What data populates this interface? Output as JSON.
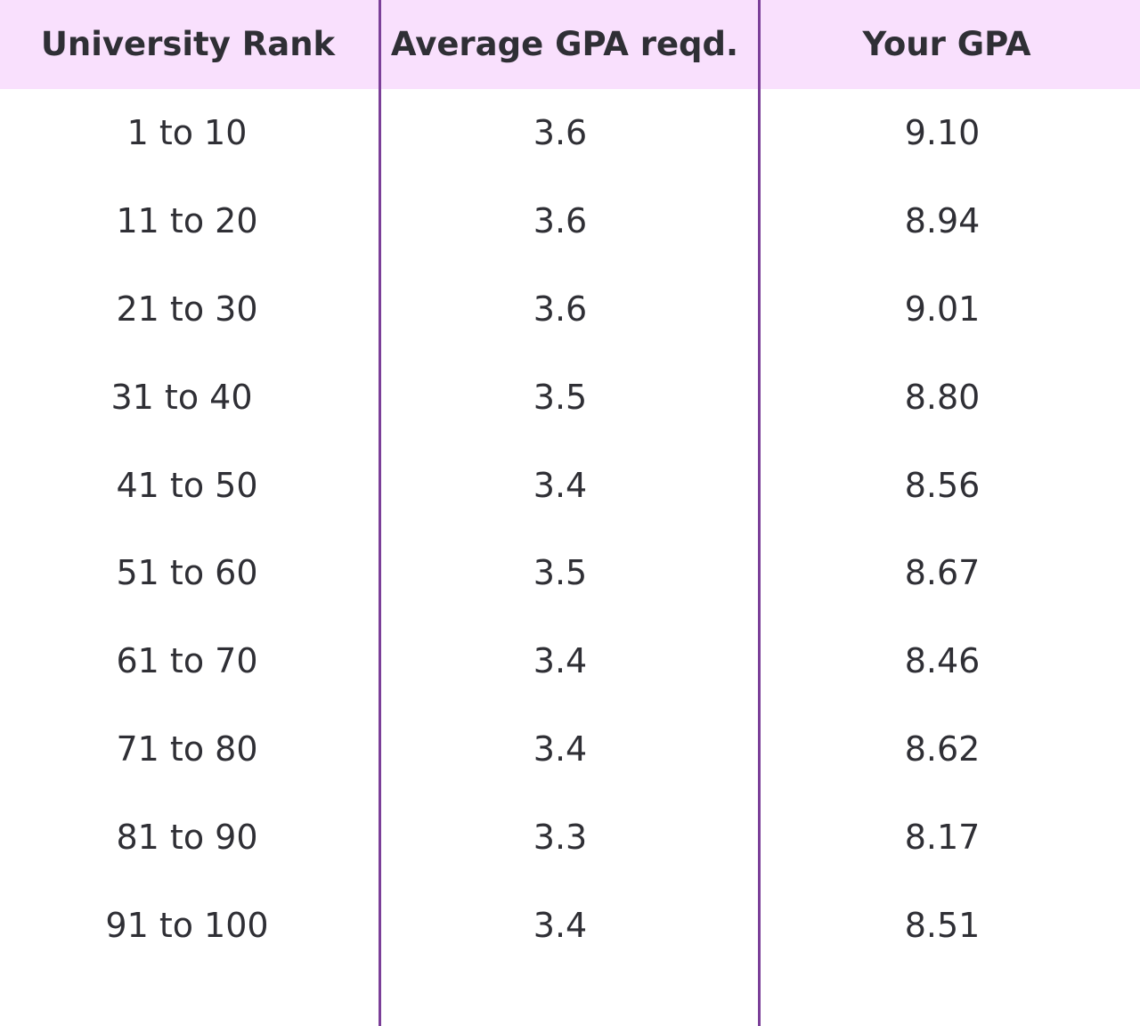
{
  "table": {
    "headers": [
      "University Rank",
      "Average GPA reqd.",
      "Your GPA"
    ],
    "rows": [
      [
        "1 to 10",
        "3.6",
        "9.10"
      ],
      [
        "11 to 20",
        "3.6",
        "8.94"
      ],
      [
        "21 to 30",
        "3.6",
        "9.01"
      ],
      [
        "31 to 40",
        "3.5",
        "8.80"
      ],
      [
        "41 to 50",
        "3.4",
        "8.56"
      ],
      [
        "51 to 60",
        "3.5",
        "8.67"
      ],
      [
        "61 to 70",
        "3.4",
        "8.46"
      ],
      [
        "71 to 80",
        "3.4",
        "8.62"
      ],
      [
        "81 to 90",
        "3.3",
        "8.17"
      ],
      [
        "91 to 100",
        "3.4",
        "8.51"
      ]
    ]
  },
  "colors": {
    "header_background": "#f9e0fd",
    "divider": "#7b3f98",
    "text": "#2f2f35"
  }
}
